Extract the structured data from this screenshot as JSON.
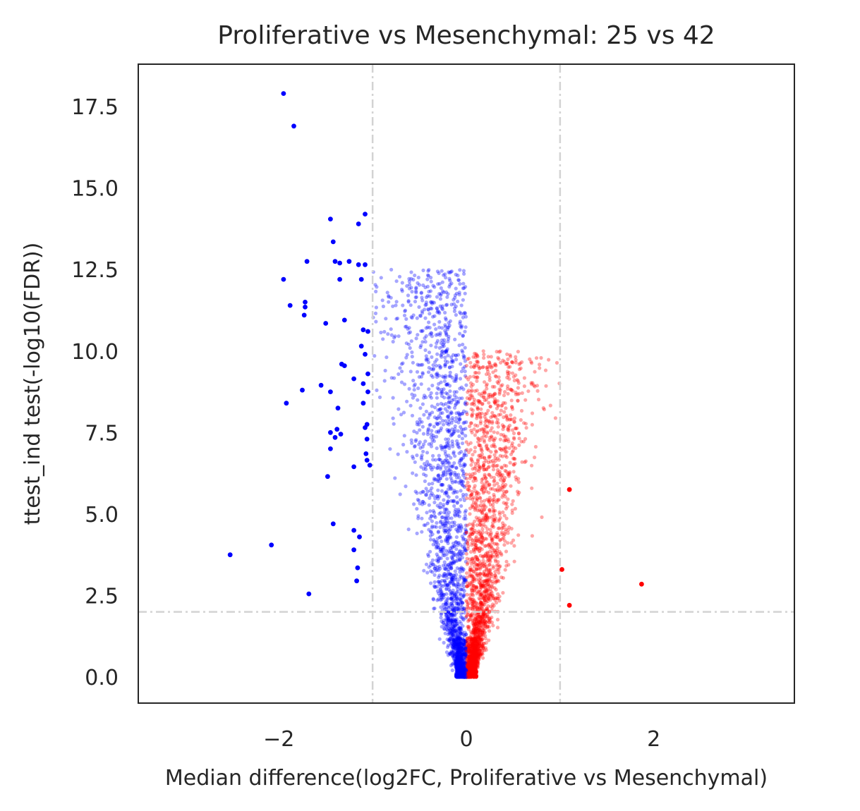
{
  "chart_data": {
    "type": "scatter",
    "title": "Proliferative vs Mesenchymal: 25 vs 42",
    "xlabel": "Median difference(log2FC, Proliferative vs Mesenchymal)",
    "ylabel": "ttest_ind test(-log10(FDR))",
    "xlim": [
      -3.5,
      3.5
    ],
    "ylim": [
      -0.8,
      18.8
    ],
    "xticks": [
      -2,
      0,
      2
    ],
    "xtick_labels": [
      "−2",
      "0",
      "2"
    ],
    "yticks": [
      0.0,
      2.5,
      5.0,
      7.5,
      10.0,
      12.5,
      15.0,
      17.5
    ],
    "ytick_labels": [
      "0.0",
      "2.5",
      "5.0",
      "7.5",
      "10.0",
      "12.5",
      "15.0",
      "17.5"
    ],
    "grid": false,
    "threshold_lines": {
      "x": [
        -1,
        1
      ],
      "y": [
        2
      ]
    },
    "colors": {
      "down": "#0000ff",
      "up": "#ff0000",
      "threshold": "#d3d3d3"
    },
    "series": [
      {
        "group": "down_significant",
        "color": "#0000ff",
        "points": [
          [
            -1.95,
            17.9
          ],
          [
            -1.84,
            16.9
          ],
          [
            -1.08,
            14.2
          ],
          [
            -1.45,
            14.05
          ],
          [
            -1.15,
            13.9
          ],
          [
            -1.42,
            13.35
          ],
          [
            -1.7,
            12.75
          ],
          [
            -1.4,
            12.75
          ],
          [
            -1.35,
            12.7
          ],
          [
            -1.25,
            12.75
          ],
          [
            -1.15,
            12.65
          ],
          [
            -1.08,
            12.65
          ],
          [
            -1.95,
            12.2
          ],
          [
            -1.35,
            12.2
          ],
          [
            -1.12,
            12.2
          ],
          [
            -1.88,
            11.4
          ],
          [
            -1.72,
            11.5
          ],
          [
            -1.72,
            11.35
          ],
          [
            -1.73,
            11.1
          ],
          [
            -1.5,
            10.85
          ],
          [
            -1.3,
            10.95
          ],
          [
            -1.1,
            10.65
          ],
          [
            -1.05,
            10.6
          ],
          [
            -1.12,
            10.15
          ],
          [
            -1.08,
            9.9
          ],
          [
            -1.33,
            9.6
          ],
          [
            -1.3,
            9.55
          ],
          [
            -1.2,
            9.15
          ],
          [
            -1.05,
            9.3
          ],
          [
            -1.1,
            9.0
          ],
          [
            -1.55,
            8.95
          ],
          [
            -1.75,
            8.8
          ],
          [
            -1.45,
            8.75
          ],
          [
            -1.05,
            8.75
          ],
          [
            -1.1,
            8.4
          ],
          [
            -1.92,
            8.4
          ],
          [
            -1.37,
            8.25
          ],
          [
            -1.06,
            7.75
          ],
          [
            -1.08,
            7.65
          ],
          [
            -1.38,
            7.6
          ],
          [
            -1.45,
            7.5
          ],
          [
            -1.34,
            7.45
          ],
          [
            -1.4,
            7.35
          ],
          [
            -1.06,
            7.3
          ],
          [
            -1.45,
            7.0
          ],
          [
            -1.07,
            6.85
          ],
          [
            -1.06,
            6.65
          ],
          [
            -1.03,
            6.5
          ],
          [
            -1.2,
            6.45
          ],
          [
            -1.48,
            6.15
          ],
          [
            -1.42,
            4.7
          ],
          [
            -1.2,
            4.5
          ],
          [
            -1.14,
            4.3
          ],
          [
            -2.08,
            4.05
          ],
          [
            -1.2,
            3.9
          ],
          [
            -2.52,
            3.75
          ],
          [
            -1.16,
            3.35
          ],
          [
            -1.17,
            2.95
          ],
          [
            -1.68,
            2.55
          ]
        ]
      },
      {
        "group": "up_significant",
        "color": "#ff0000",
        "points": [
          [
            1.1,
            5.75
          ],
          [
            1.87,
            2.85
          ],
          [
            1.1,
            2.2
          ],
          [
            1.02,
            3.3
          ]
        ]
      },
      {
        "group": "down_not_significant",
        "color": "#0000ff",
        "alpha": 0.35,
        "description_range": {
          "x": [
            -1.0,
            0.0
          ],
          "y": [
            0.0,
            15.0
          ]
        }
      },
      {
        "group": "up_not_significant",
        "color": "#ff0000",
        "alpha": 0.35,
        "description_range": {
          "x": [
            0.0,
            1.0
          ],
          "y": [
            0.0,
            10.5
          ]
        }
      }
    ]
  }
}
